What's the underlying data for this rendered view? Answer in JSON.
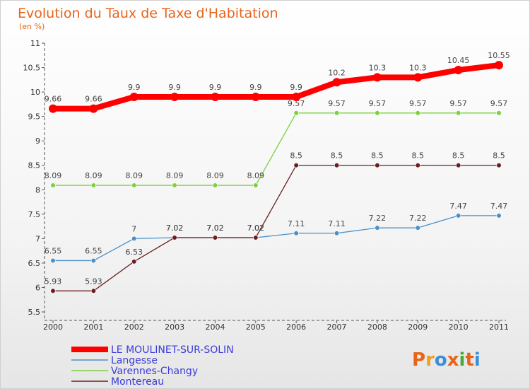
{
  "title": "Evolution du Taux de Taxe d'Habitation",
  "subtitle": "(en %)",
  "logo": {
    "text": "Proxiti",
    "colors": [
      "#e8641b",
      "#f0a020",
      "#3a8fd8",
      "#e8641b",
      "#4aa83a",
      "#e8641b",
      "#3a8fd8"
    ]
  },
  "chart_data": {
    "type": "line",
    "title": "Evolution du Taux de Taxe d'Habitation",
    "ylabel": "(en %)",
    "x": [
      "2000",
      "2001",
      "2002",
      "2003",
      "2004",
      "2005",
      "2006",
      "2007",
      "2008",
      "2009",
      "2010",
      "2011"
    ],
    "ylim": [
      5.5,
      11
    ],
    "yticks": [
      "5.5",
      "6",
      "6.5",
      "7",
      "7.5",
      "8",
      "8.5",
      "9",
      "9.5",
      "10",
      "10.5",
      "11"
    ],
    "grid": false,
    "legend_position": "bottom-left",
    "series": [
      {
        "name": "LE MOULINET-SUR-SOLIN",
        "color": "#ff0000",
        "values": [
          9.66,
          9.66,
          9.9,
          9.9,
          9.9,
          9.9,
          9.9,
          10.2,
          10.3,
          10.3,
          10.45,
          10.55
        ],
        "labels": [
          "9.66",
          "9.66",
          "9.9",
          "9.9",
          "9.9",
          "9.9",
          "9.9",
          "10.2",
          "10.3",
          "10.3",
          "10.45",
          "10.55"
        ]
      },
      {
        "name": "Langesse",
        "color": "#4a90c8",
        "values": [
          6.55,
          6.55,
          7,
          7.02,
          7.02,
          7.02,
          7.11,
          7.11,
          7.22,
          7.22,
          7.47,
          7.47
        ],
        "labels": [
          "6.55",
          "6.55",
          "7",
          "7.02",
          "7.02",
          "7.02",
          "7.11",
          "7.11",
          "7.22",
          "7.22",
          "7.47",
          "7.47"
        ]
      },
      {
        "name": "Varennes-Changy",
        "color": "#7dd040",
        "values": [
          8.09,
          8.09,
          8.09,
          8.09,
          8.09,
          8.09,
          9.57,
          9.57,
          9.57,
          9.57,
          9.57,
          9.57
        ],
        "labels": [
          "8.09",
          "8.09",
          "8.09",
          "8.09",
          "8.09",
          "8.09",
          "9.57",
          "9.57",
          "9.57",
          "9.57",
          "9.57",
          "9.57"
        ]
      },
      {
        "name": "Montereau",
        "color": "#6b1e1e",
        "values": [
          5.93,
          5.93,
          6.53,
          7.02,
          7.02,
          7.02,
          8.5,
          8.5,
          8.5,
          8.5,
          8.5,
          8.5
        ],
        "labels": [
          "5.93",
          "5.93",
          "6.53",
          "7.02",
          "7.02",
          "7.02",
          "8.5",
          "8.5",
          "8.5",
          "8.5",
          "8.5",
          "8.5"
        ]
      }
    ]
  }
}
